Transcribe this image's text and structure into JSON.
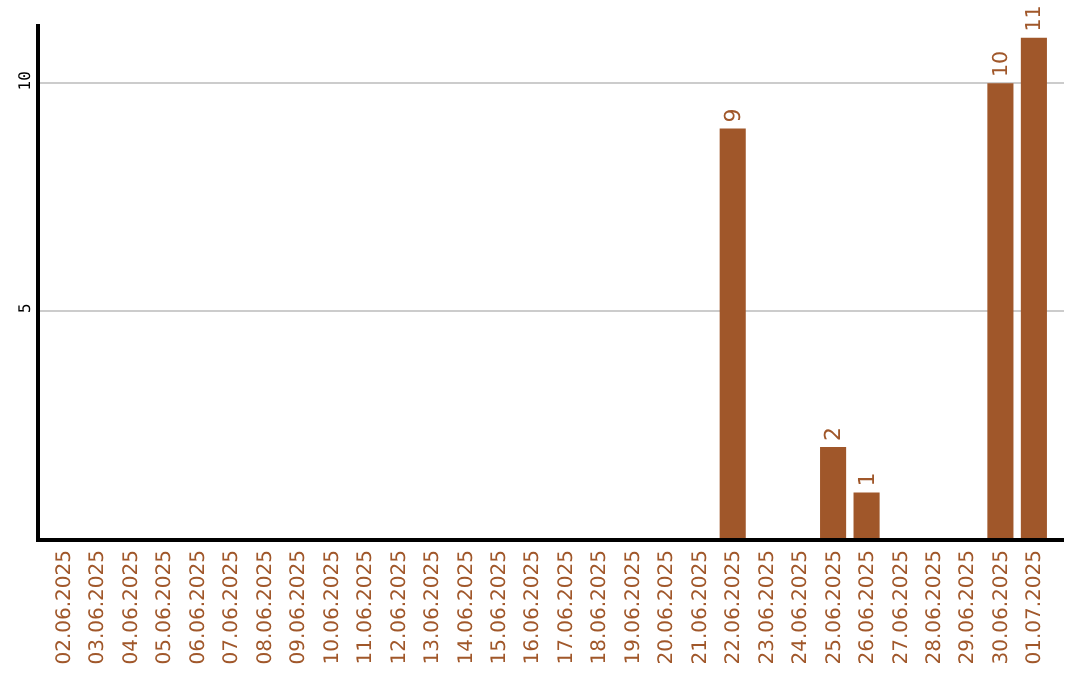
{
  "chart_data": {
    "type": "bar",
    "categories": [
      "02.06.2025",
      "03.06.2025",
      "04.06.2025",
      "05.06.2025",
      "06.06.2025",
      "07.06.2025",
      "08.06.2025",
      "09.06.2025",
      "10.06.2025",
      "11.06.2025",
      "12.06.2025",
      "13.06.2025",
      "14.06.2025",
      "15.06.2025",
      "16.06.2025",
      "17.06.2025",
      "18.06.2025",
      "19.06.2025",
      "20.06.2025",
      "21.06.2025",
      "22.06.2025",
      "23.06.2025",
      "24.06.2025",
      "25.06.2025",
      "26.06.2025",
      "27.06.2025",
      "28.06.2025",
      "29.06.2025",
      "30.06.2025",
      "01.07.2025"
    ],
    "values": [
      0,
      0,
      0,
      0,
      0,
      0,
      0,
      0,
      0,
      0,
      0,
      0,
      0,
      0,
      0,
      0,
      0,
      0,
      0,
      0,
      9,
      0,
      0,
      2,
      1,
      0,
      0,
      0,
      10,
      11
    ],
    "value_labels": [
      null,
      null,
      null,
      null,
      null,
      null,
      null,
      null,
      null,
      null,
      null,
      null,
      null,
      null,
      null,
      null,
      null,
      null,
      null,
      null,
      "9",
      null,
      null,
      "2",
      "1",
      null,
      null,
      null,
      "10",
      "11"
    ],
    "color": "#a0572a",
    "ylim": [
      0,
      11.3
    ],
    "yticks": [
      5,
      10
    ],
    "grid": "y"
  }
}
